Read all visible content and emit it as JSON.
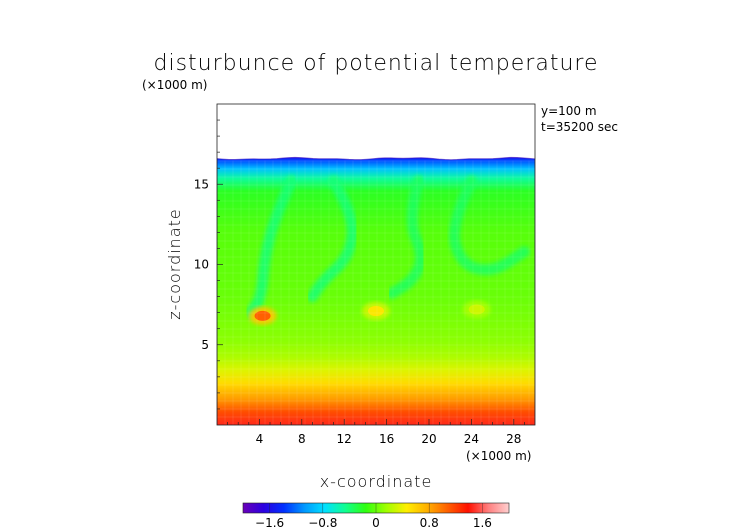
{
  "chart_data": {
    "type": "heatmap",
    "title": "disturbunce of potential temperature",
    "unit_top": "(×1000 m)",
    "unit_right": "(×1000 m)",
    "annotations": [
      "y=100 m",
      "t=35200 sec"
    ],
    "xlabel": "x-coordinate",
    "ylabel": "z-coordinate",
    "xlim": [
      0,
      30
    ],
    "ylim": [
      0,
      20
    ],
    "x_ticks": [
      4,
      8,
      12,
      16,
      20,
      24,
      28
    ],
    "y_ticks": [
      5,
      10,
      15
    ],
    "x_tick_labels": [
      "4",
      "8",
      "12",
      "16",
      "20",
      "24",
      "28"
    ],
    "y_tick_labels": [
      "5",
      "10",
      "15"
    ],
    "data_top_z": 16.6,
    "colorbar": {
      "range": [
        -2.0,
        2.0
      ],
      "ticks": [
        -1.6,
        -0.8,
        0,
        0.8,
        1.6
      ],
      "tick_labels": [
        "−1.6",
        "−0.8",
        "0",
        "0.8",
        "1.6"
      ],
      "colors": [
        "#6a00b8",
        "#2c00e0",
        "#0030ff",
        "#0098ff",
        "#00e0ff",
        "#10ff90",
        "#30ff10",
        "#a0ff00",
        "#ffee00",
        "#ffb000",
        "#ff6000",
        "#ff1000",
        "#ff8080",
        "#ffd0d0"
      ]
    },
    "vertical_profile": [
      {
        "z": 0.0,
        "value": 1.45
      },
      {
        "z": 0.8,
        "value": 1.15
      },
      {
        "z": 1.6,
        "value": 0.85
      },
      {
        "z": 2.6,
        "value": 0.55
      },
      {
        "z": 3.4,
        "value": 0.35
      },
      {
        "z": 4.2,
        "value": 0.2
      },
      {
        "z": 5.2,
        "value": 0.1
      },
      {
        "z": 6.5,
        "value": 0.05
      },
      {
        "z": 8.0,
        "value": 0.0
      },
      {
        "z": 12.0,
        "value": -0.05
      },
      {
        "z": 14.5,
        "value": -0.2
      },
      {
        "z": 15.3,
        "value": -0.5
      },
      {
        "z": 15.9,
        "value": -0.9
      },
      {
        "z": 16.4,
        "value": -1.3
      },
      {
        "z": 16.6,
        "value": -1.6
      }
    ],
    "features": [
      {
        "kind": "plume",
        "value": -0.4,
        "path": [
          [
            7.0,
            15.2
          ],
          [
            5.5,
            13.0
          ],
          [
            4.5,
            10.5
          ],
          [
            4.2,
            8.0
          ],
          [
            3.2,
            7.0
          ]
        ]
      },
      {
        "kind": "plume",
        "value": -0.4,
        "path": [
          [
            11.0,
            15.2
          ],
          [
            13.0,
            13.0
          ],
          [
            12.5,
            10.5
          ],
          [
            10.0,
            9.0
          ],
          [
            9.0,
            8.0
          ]
        ]
      },
      {
        "kind": "plume",
        "value": -0.35,
        "path": [
          [
            19.0,
            15.2
          ],
          [
            18.0,
            12.8
          ],
          [
            19.5,
            10.5
          ],
          [
            18.5,
            9.0
          ],
          [
            16.5,
            8.2
          ]
        ]
      },
      {
        "kind": "plume",
        "value": -0.35,
        "path": [
          [
            24.0,
            15.2
          ],
          [
            22.0,
            12.5
          ],
          [
            23.0,
            10.0
          ],
          [
            26.0,
            9.5
          ],
          [
            29.0,
            10.8
          ]
        ]
      },
      {
        "kind": "warm-blob",
        "value": 1.1,
        "x": 4.3,
        "z": 6.8
      },
      {
        "kind": "warm-blob",
        "value": 0.5,
        "x": 15.0,
        "z": 7.1
      },
      {
        "kind": "warm-blob",
        "value": 0.3,
        "x": 24.5,
        "z": 7.2
      }
    ]
  }
}
